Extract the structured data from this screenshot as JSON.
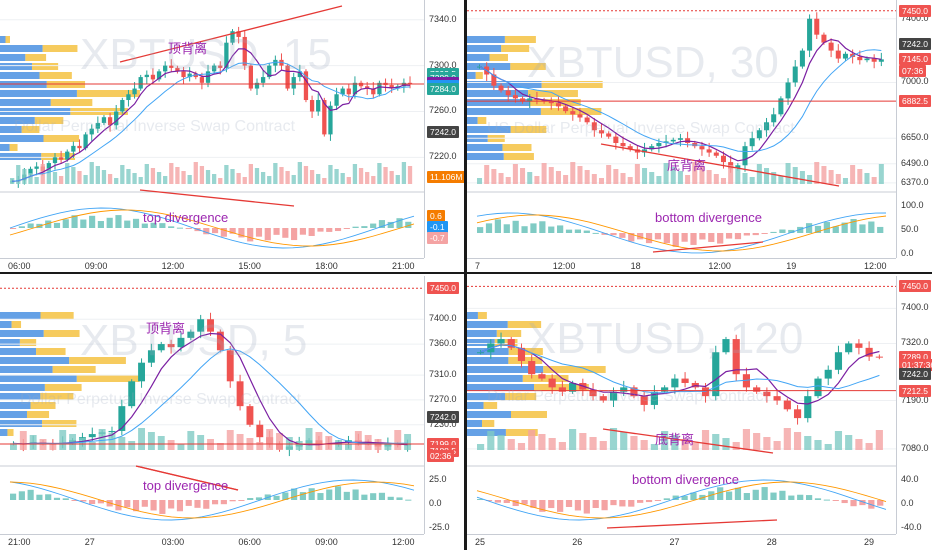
{
  "colors": {
    "up": "#26a69a",
    "down": "#ef5350",
    "red_line": "#e53935",
    "purple": "#7b1fa2",
    "cyan": "#4dd0e1",
    "vol_up": "#80cbc4",
    "vol_down": "#f4a3a3",
    "vp_blue": "#4a90e2",
    "vp_yellow": "#f5c242"
  },
  "chart_data": [
    {
      "type": "candlestick",
      "panel": "top-left",
      "watermark": "XBTUSD, 15",
      "subtitle": "Dollar Perpetual Inverse Swap Contract",
      "annotation_cn": "顶背离",
      "annotation_en": "top divergence",
      "ylim": [
        7195,
        7352
      ],
      "y_ticks": [
        {
          "label": "7340.0",
          "v": 7340
        },
        {
          "label": "7300.0",
          "v": 7300
        },
        {
          "label": "7260.0",
          "v": 7260
        },
        {
          "label": "7220.0",
          "v": 7220
        }
      ],
      "badges": [
        {
          "label": "7292.5",
          "v": 7292.5,
          "color": "#26a69a"
        },
        {
          "label": "7289.5",
          "v": 7289.5,
          "color": "#ef5350"
        },
        {
          "label": "7289.0",
          "v": 7289.0,
          "color": "#26a69a"
        },
        {
          "label": "7285.0",
          "v": 7285.0,
          "color": "#7b1fa2"
        },
        {
          "label": "7285.0",
          "v": 7282.2,
          "color": "#2196f3"
        },
        {
          "label": "7284.0",
          "v": 7279.4,
          "color": "#26a69a"
        },
        {
          "label": "7242.0",
          "v": 7242,
          "color": "#444"
        },
        {
          "label": "11.106M",
          "v": 7203,
          "color": "#f57c00"
        }
      ],
      "macd_badges": [
        {
          "label": "0.6",
          "color": "#f57c00"
        },
        {
          "label": "-0.1",
          "color": "#2196f3"
        },
        {
          "label": "-0.7",
          "color": "#f4a3a3"
        }
      ],
      "x_ticks": [
        "06:00",
        "09:00",
        "12:00",
        "15:00",
        "18:00",
        "21:00"
      ],
      "closes": [
        7199,
        7200,
        7205,
        7210,
        7212,
        7208,
        7215,
        7220,
        7218,
        7225,
        7230,
        7228,
        7240,
        7245,
        7250,
        7255,
        7248,
        7260,
        7270,
        7275,
        7280,
        7290,
        7292,
        7288,
        7295,
        7300,
        7298,
        7295,
        7290,
        7293,
        7290,
        7285,
        7295,
        7300,
        7298,
        7320,
        7330,
        7325,
        7300,
        7280,
        7285,
        7290,
        7300,
        7305,
        7300,
        7280,
        7290,
        7295,
        7270,
        7260,
        7270,
        7240,
        7265,
        7275,
        7280,
        7275,
        7285,
        7282,
        7280,
        7275,
        7285,
        7283,
        7280,
        7282,
        7285,
        7284
      ],
      "pivot_line": 7284
    },
    {
      "type": "candlestick",
      "panel": "top-right",
      "watermark": "XBTUSD, 30",
      "subtitle": "US Dollar Perpetual Inverse Swap Contract",
      "annotation_cn": "底背离",
      "annotation_en": "bottom divergence",
      "ylim": [
        6350,
        7480
      ],
      "y_ticks": [
        {
          "label": "7400.0",
          "v": 7400
        },
        {
          "label": "7000.0",
          "v": 7000
        },
        {
          "label": "6650.0",
          "v": 6650
        },
        {
          "label": "6490.0",
          "v": 6490
        },
        {
          "label": "6370.0",
          "v": 6370
        }
      ],
      "badges": [
        {
          "label": "7450.0",
          "v": 7450,
          "color": "#ef5350"
        },
        {
          "label": "7242.0",
          "v": 7242,
          "color": "#444"
        },
        {
          "label": "7145.0",
          "v": 7145,
          "color": "#ef5350"
        },
        {
          "label": "07:36",
          "v": 7070,
          "color": "#ef5350"
        },
        {
          "label": "6882.5",
          "v": 6882.5,
          "color": "#ef5350"
        }
      ],
      "macd_ticks": [
        "100.0",
        "50.0",
        "0.0"
      ],
      "x_ticks": [
        "7",
        "12:00",
        "18",
        "12:00",
        "19",
        "12:00"
      ],
      "closes": [
        7100,
        7050,
        6980,
        6950,
        6920,
        6900,
        6880,
        6900,
        6890,
        6880,
        6870,
        6850,
        6820,
        6800,
        6780,
        6750,
        6700,
        6680,
        6660,
        6620,
        6600,
        6580,
        6560,
        6580,
        6600,
        6620,
        6630,
        6640,
        6650,
        6620,
        6600,
        6580,
        6560,
        6540,
        6500,
        6460,
        6480,
        6600,
        6650,
        6700,
        6750,
        6800,
        6900,
        7000,
        7100,
        7200,
        7400,
        7300,
        7250,
        7200,
        7150,
        7180,
        7160,
        7140,
        7150,
        7130,
        7145
      ],
      "pivot_line": 6882.5
    },
    {
      "type": "candlestick",
      "panel": "bottom-left",
      "watermark": "XBTUSD, 5",
      "subtitle": "Dollar Perpetual Inverse Swap Contract",
      "annotation_cn": "顶背离",
      "annotation_en": "top divergence",
      "ylim": [
        7170,
        7460
      ],
      "y_ticks": [
        {
          "label": "7400.0",
          "v": 7400
        },
        {
          "label": "7360.0",
          "v": 7360
        },
        {
          "label": "7310.0",
          "v": 7310
        },
        {
          "label": "7270.0",
          "v": 7270
        },
        {
          "label": "7230.0",
          "v": 7230
        }
      ],
      "badges": [
        {
          "label": "7450.0",
          "v": 7450,
          "color": "#ef5350"
        },
        {
          "label": "7242.0",
          "v": 7242,
          "color": "#444"
        },
        {
          "label": "7199.0",
          "v": 7199,
          "color": "#ef5350"
        },
        {
          "label": "7188.5",
          "v": 7188.5,
          "color": "#ef5350"
        },
        {
          "label": "02:36",
          "v": 7180,
          "color": "#ef5350"
        }
      ],
      "macd_ticks": [
        "25.0",
        "0.0",
        "-25.0"
      ],
      "x_ticks": [
        "21:00",
        "27",
        "03:00",
        "06:00",
        "09:00",
        "12:00"
      ],
      "closes": [
        7200,
        7198,
        7202,
        7200,
        7199,
        7201,
        7205,
        7210,
        7215,
        7218,
        7220,
        7260,
        7300,
        7330,
        7350,
        7360,
        7355,
        7370,
        7380,
        7400,
        7380,
        7350,
        7300,
        7260,
        7230,
        7210,
        7200,
        7190,
        7195,
        7200,
        7205,
        7200,
        7198,
        7202,
        7205,
        7203,
        7200,
        7195,
        7199,
        7197,
        7199
      ],
      "pivot_line": 7199
    },
    {
      "type": "candlestick",
      "panel": "bottom-right",
      "watermark": "XBTUSD, 120",
      "subtitle": "Dollar Perpetual Inverse Swap Contract",
      "annotation_cn": "底背离",
      "annotation_en": "bottom divergence",
      "ylim": [
        7050,
        7460
      ],
      "y_ticks": [
        {
          "label": "7400.0",
          "v": 7400
        },
        {
          "label": "7320.0",
          "v": 7320
        },
        {
          "label": "7190.0",
          "v": 7190
        },
        {
          "label": "7080.0",
          "v": 7080
        }
      ],
      "badges": [
        {
          "label": "7450.0",
          "v": 7450,
          "color": "#ef5350"
        },
        {
          "label": "7289.0",
          "v": 7289,
          "color": "#ef5350"
        },
        {
          "label": "01:37:36",
          "v": 7270,
          "color": "#ef5350"
        },
        {
          "label": "7242.0",
          "v": 7250,
          "color": "#444"
        },
        {
          "label": "7212.5",
          "v": 7212.5,
          "color": "#ef5350"
        }
      ],
      "macd_ticks": [
        "40.0",
        "0.0",
        "-40.0"
      ],
      "x_ticks": [
        "25",
        "26",
        "27",
        "28",
        "29"
      ],
      "closes": [
        7300,
        7320,
        7330,
        7310,
        7280,
        7250,
        7240,
        7220,
        7210,
        7230,
        7215,
        7200,
        7190,
        7210,
        7220,
        7200,
        7180,
        7210,
        7220,
        7240,
        7230,
        7220,
        7200,
        7300,
        7330,
        7250,
        7220,
        7210,
        7200,
        7190,
        7170,
        7150,
        7200,
        7240,
        7260,
        7300,
        7320,
        7310,
        7290,
        7289
      ],
      "pivot_line": 7212.5
    }
  ]
}
